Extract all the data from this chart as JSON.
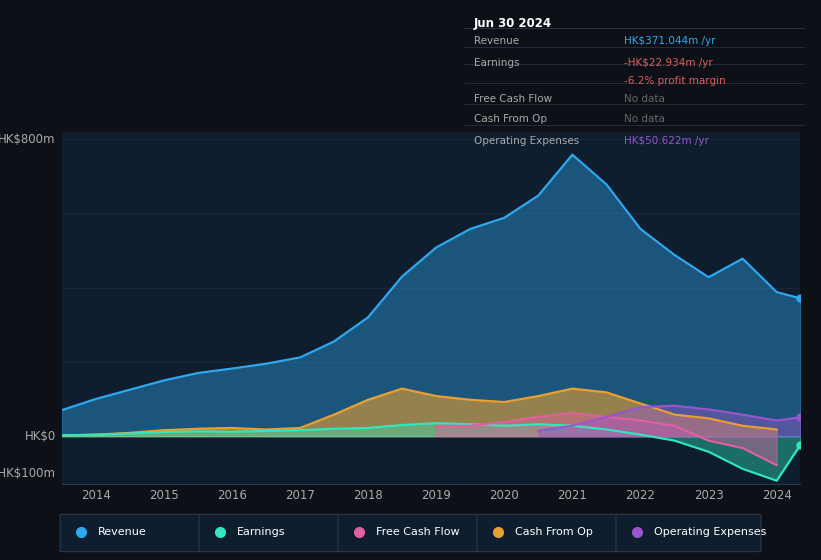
{
  "bg_color": "#0d1117",
  "plot_bg_color": "#0e1e2e",
  "grid_color": "#1a2a3a",
  "ylabel_top": "HK$800m",
  "ylabel_zero": "HK$0",
  "ylabel_neg": "-HK$100m",
  "years": [
    2013.5,
    2014.0,
    2014.5,
    2015.0,
    2015.5,
    2016.0,
    2016.5,
    2017.0,
    2017.5,
    2018.0,
    2018.5,
    2019.0,
    2019.5,
    2020.0,
    2020.5,
    2021.0,
    2021.5,
    2022.0,
    2022.5,
    2023.0,
    2023.5,
    2024.0,
    2024.35
  ],
  "revenue": [
    70,
    100,
    125,
    150,
    170,
    182,
    195,
    212,
    255,
    320,
    430,
    508,
    558,
    588,
    648,
    758,
    678,
    558,
    488,
    428,
    478,
    388,
    371
  ],
  "earnings": [
    2,
    4,
    7,
    11,
    13,
    12,
    14,
    16,
    20,
    22,
    30,
    35,
    32,
    28,
    32,
    28,
    18,
    4,
    -12,
    -42,
    -88,
    -120,
    -23
  ],
  "free_cash_flow": [
    null,
    null,
    null,
    null,
    null,
    null,
    null,
    null,
    null,
    null,
    null,
    28,
    28,
    38,
    52,
    62,
    52,
    42,
    28,
    -12,
    -32,
    -78,
    null
  ],
  "cash_from_op": [
    2,
    4,
    9,
    16,
    20,
    22,
    18,
    22,
    58,
    98,
    128,
    108,
    98,
    92,
    108,
    128,
    118,
    88,
    58,
    48,
    28,
    18,
    null
  ],
  "operating_expenses": [
    null,
    null,
    null,
    null,
    null,
    null,
    null,
    null,
    null,
    null,
    null,
    null,
    null,
    null,
    14,
    28,
    52,
    78,
    82,
    72,
    58,
    42,
    51
  ],
  "revenue_color": "#2fa8f0",
  "earnings_color": "#30e8c0",
  "free_cash_flow_color": "#e060a0",
  "cash_from_op_color": "#e8a030",
  "operating_expenses_color": "#9955cc",
  "x_ticks": [
    2014,
    2015,
    2016,
    2017,
    2018,
    2019,
    2020,
    2021,
    2022,
    2023,
    2024
  ],
  "ylim": [
    -130,
    820
  ],
  "box_date": "Jun 30 2024",
  "box_rows": [
    {
      "label": "Revenue",
      "value": "HK$371.044m /yr",
      "label_color": "#aaaaaa",
      "value_color": "#2fa8f0"
    },
    {
      "label": "Earnings",
      "value": "-HK$22.934m /yr",
      "label_color": "#aaaaaa",
      "value_color": "#e05c5c"
    },
    {
      "label": "",
      "value": "-6.2% profit margin",
      "label_color": "#aaaaaa",
      "value_color": "#e05c5c"
    },
    {
      "label": "Free Cash Flow",
      "value": "No data",
      "label_color": "#aaaaaa",
      "value_color": "#666666"
    },
    {
      "label": "Cash From Op",
      "value": "No data",
      "label_color": "#aaaaaa",
      "value_color": "#666666"
    },
    {
      "label": "Operating Expenses",
      "value": "HK$50.622m /yr",
      "label_color": "#aaaaaa",
      "value_color": "#9955cc"
    }
  ],
  "legend_items": [
    {
      "label": "Revenue",
      "color": "#2fa8f0"
    },
    {
      "label": "Earnings",
      "color": "#30e8c0"
    },
    {
      "label": "Free Cash Flow",
      "color": "#e060a0"
    },
    {
      "label": "Cash From Op",
      "color": "#e8a030"
    },
    {
      "label": "Operating Expenses",
      "color": "#9955cc"
    }
  ]
}
